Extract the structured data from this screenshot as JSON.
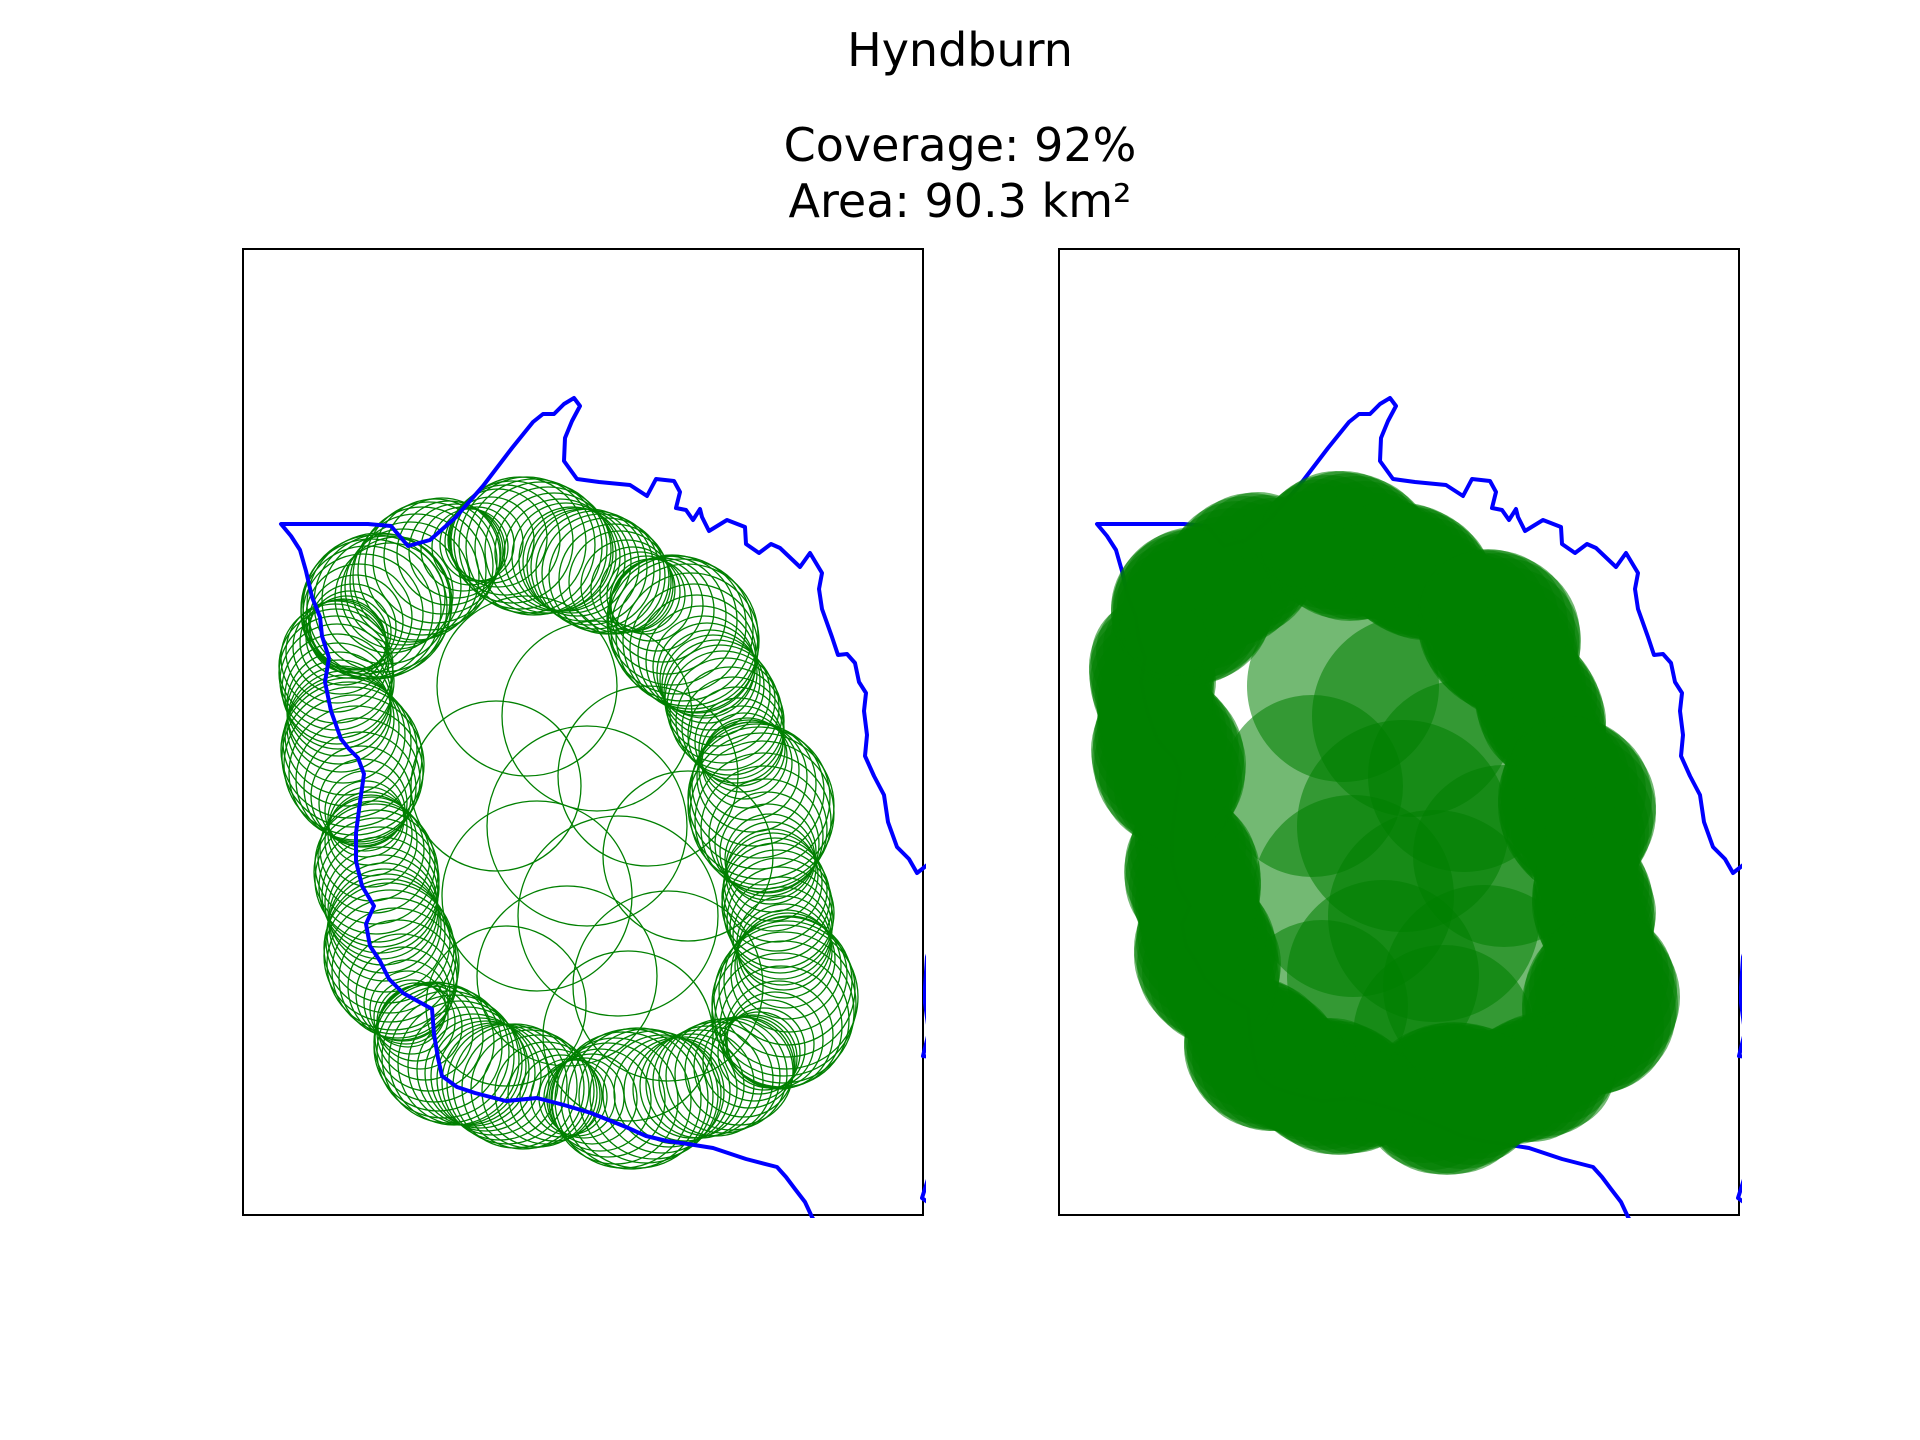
{
  "figure": {
    "title": "Hyndburn",
    "coverage_text": "Coverage: 92%",
    "area_text": "Area: 90.3 km²"
  },
  "panels": [
    {
      "style": "outline circles"
    },
    {
      "style": "filled circles"
    }
  ],
  "colors": {
    "boundary": "#0000ff",
    "coverage": "#008000",
    "frame": "#000000",
    "background": "#ffffff"
  }
}
